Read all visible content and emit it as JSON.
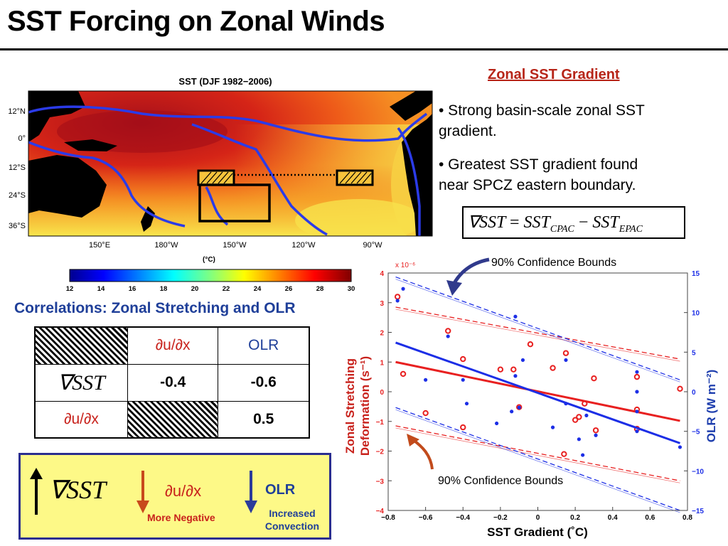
{
  "slide": {
    "title": "SST Forcing on Zonal Winds"
  },
  "map": {
    "title": "SST (DJF 1982−2006)",
    "lat_labels": [
      "12°N",
      "0°",
      "12°S",
      "24°S",
      "36°S"
    ],
    "lon_labels": [
      "150°E",
      "180°W",
      "150°W",
      "120°W",
      "90°W"
    ],
    "unit": "(°C)",
    "colorbar_ticks": [
      "12",
      "14",
      "16",
      "18",
      "20",
      "22",
      "24",
      "26",
      "28",
      "30"
    ],
    "colors": {
      "land": "#000000",
      "contour": "#2b3be8",
      "warm": "#c8121a",
      "cool": "#f7e44a"
    }
  },
  "right_panel": {
    "heading": "Zonal SST Gradient",
    "bullet1_line1": "• Strong basin-scale zonal SST",
    "bullet1_line2": "gradient.",
    "bullet2_line1": "• Greatest SST gradient found",
    "bullet2_line2": "near SPCZ eastern boundary.",
    "equation": {
      "nabla": "∇SST",
      "eq": "=",
      "sst1": "SST",
      "sub1": "CPAC",
      "minus": "−",
      "sst2": "SST",
      "sub2": "EPAC"
    }
  },
  "correlations": {
    "heading": "Correlations: Zonal Stretching and OLR",
    "col1": "∂u/∂x",
    "col2": "OLR",
    "row1": "∇SST",
    "row2": "∂u/∂x",
    "r1c1": "-0.4",
    "r1c2": "-0.6",
    "r2c2": "0.5"
  },
  "summary": {
    "nabla": "∇SST",
    "dudx": "∂u/∂x",
    "more_negative": "More Negative",
    "olr": "OLR",
    "increased": "Increased",
    "convection": "Convection",
    "colors": {
      "up_arrow": "#000000",
      "down_red": "#c8491c",
      "down_blue": "#2b3b9a",
      "box_fill": "#fdf987",
      "box_border": "#2b2e8f"
    }
  },
  "annotations": {
    "ci_top": "90% Confidence Bounds",
    "ci_bottom": "90% Confidence Bounds",
    "arrow_top_color": "#303a8c",
    "arrow_bottom_color": "#c24b1c"
  },
  "chart_data": {
    "type": "scatter",
    "xlabel": "SST Gradient (˚C)",
    "ylabel_line1": "Zonal Stretching",
    "ylabel_line2": "Deformation (s⁻¹)",
    "y2label": "OLR (W m⁻²)",
    "y_exponent": "x 10⁻⁶",
    "xlim": [
      -0.8,
      0.8
    ],
    "ylim": [
      -4,
      4
    ],
    "y2lim": [
      -15,
      15
    ],
    "x_ticks": [
      -0.8,
      -0.6,
      -0.4,
      -0.2,
      0,
      0.2,
      0.4,
      0.6,
      0.8
    ],
    "x_tick_labels": [
      "−0.8",
      "−0.6",
      "−0.4",
      "−0.2",
      "0",
      "0.2",
      "0.4",
      "0.6",
      "0.8"
    ],
    "y_ticks": [
      -4,
      -3,
      -2,
      -1,
      0,
      1,
      2,
      3,
      4
    ],
    "y_tick_labels": [
      "−4",
      "−3",
      "−2",
      "−1",
      "0",
      "1",
      "2",
      "3",
      "4"
    ],
    "y2_ticks": [
      -15,
      -10,
      -5,
      0,
      5,
      10,
      15
    ],
    "y2_tick_labels": [
      "−15",
      "−10",
      "−5",
      "0",
      "5",
      "10",
      "15"
    ],
    "series": [
      {
        "color": "#e82020",
        "axis": "left",
        "marker": "circle",
        "points": [
          [
            -0.75,
            3.2
          ],
          [
            -0.72,
            0.6
          ],
          [
            -0.6,
            -0.72
          ],
          [
            -0.48,
            2.05
          ],
          [
            -0.4,
            -1.2
          ],
          [
            -0.4,
            1.1
          ],
          [
            -0.2,
            0.75
          ],
          [
            -0.13,
            0.75
          ],
          [
            -0.1,
            -0.52
          ],
          [
            -0.04,
            1.6
          ],
          [
            0.08,
            0.8
          ],
          [
            0.15,
            1.3
          ],
          [
            0.14,
            -2.1
          ],
          [
            0.2,
            -0.95
          ],
          [
            0.22,
            -0.85
          ],
          [
            0.25,
            -0.4
          ],
          [
            0.3,
            0.45
          ],
          [
            0.31,
            -1.3
          ],
          [
            0.53,
            0.5
          ],
          [
            0.53,
            -0.6
          ],
          [
            0.53,
            -1.25
          ],
          [
            0.76,
            0.1
          ]
        ],
        "fit": {
          "x": [
            -0.76,
            0.76
          ],
          "y": [
            1.0,
            -0.98
          ]
        },
        "ci_upper": {
          "x": [
            -0.76,
            0.76
          ],
          "y": [
            2.85,
            1.1
          ]
        },
        "ci_lower": {
          "x": [
            -0.76,
            0.76
          ],
          "y": [
            -1.15,
            -3.0
          ]
        }
      },
      {
        "color": "#1c2ee6",
        "axis": "right",
        "marker": "dot",
        "points": [
          [
            -0.75,
            11.5
          ],
          [
            -0.72,
            13.0
          ],
          [
            -0.6,
            1.5
          ],
          [
            -0.48,
            7.0
          ],
          [
            -0.4,
            1.5
          ],
          [
            -0.38,
            -1.5
          ],
          [
            -0.22,
            -4.0
          ],
          [
            -0.14,
            -2.5
          ],
          [
            -0.1,
            -2.0
          ],
          [
            -0.12,
            9.5
          ],
          [
            -0.12,
            2.0
          ],
          [
            -0.08,
            4.0
          ],
          [
            0.08,
            -4.5
          ],
          [
            0.15,
            4.0
          ],
          [
            0.15,
            -1.5
          ],
          [
            0.22,
            -6.0
          ],
          [
            0.24,
            -8.0
          ],
          [
            0.26,
            -3.0
          ],
          [
            0.31,
            -5.5
          ],
          [
            0.53,
            2.5
          ],
          [
            0.53,
            0.0
          ],
          [
            0.53,
            -2.5
          ],
          [
            0.53,
            -5.0
          ],
          [
            0.76,
            -7.0
          ]
        ],
        "fit": {
          "x": [
            -0.76,
            0.76
          ],
          "y": [
            6.2,
            -6.5
          ]
        },
        "ci_upper": {
          "x": [
            -0.76,
            0.76
          ],
          "y": [
            14.5,
            1.5
          ]
        },
        "ci_lower": {
          "x": [
            -0.76,
            0.76
          ],
          "y": [
            -2.0,
            -15.0
          ]
        }
      }
    ]
  }
}
